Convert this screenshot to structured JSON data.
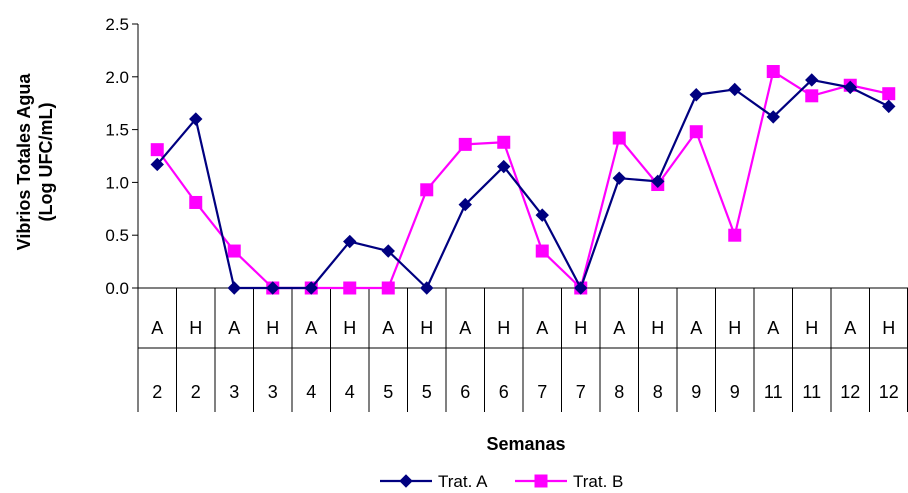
{
  "chart_data": {
    "type": "line",
    "ylabel_line1": "Vibrios Totales Agua",
    "ylabel_line2": "(Log UFC/mL)",
    "xlabel": "Semanas",
    "ylim": [
      0,
      2.5
    ],
    "yticks": [
      "0.0",
      "0.5",
      "1.0",
      "1.5",
      "2.0",
      "2.5"
    ],
    "categories_row1": [
      "A",
      "H",
      "A",
      "H",
      "A",
      "H",
      "A",
      "H",
      "A",
      "H",
      "A",
      "H",
      "A",
      "H",
      "A",
      "H",
      "A",
      "H",
      "A",
      "H"
    ],
    "categories_row2": [
      "2",
      "2",
      "3",
      "3",
      "4",
      "4",
      "5",
      "5",
      "6",
      "6",
      "7",
      "7",
      "8",
      "8",
      "9",
      "9",
      "11",
      "11",
      "12",
      "12"
    ],
    "series": [
      {
        "name": "Trat. A",
        "color": "#000080",
        "marker": "diamond",
        "values": [
          1.17,
          1.6,
          0.0,
          0.0,
          0.0,
          0.44,
          0.35,
          0.0,
          0.79,
          1.15,
          0.69,
          0.0,
          1.04,
          1.01,
          1.83,
          1.88,
          1.62,
          1.97,
          1.9,
          1.72
        ]
      },
      {
        "name": "Trat. B",
        "color": "#ff00ff",
        "marker": "square",
        "values": [
          1.31,
          0.81,
          0.35,
          0.0,
          0.0,
          0.0,
          0.0,
          0.93,
          1.36,
          1.38,
          0.35,
          0.0,
          1.42,
          0.98,
          1.48,
          0.5,
          2.05,
          1.82,
          1.92,
          1.84
        ]
      }
    ],
    "legend": "bottom-center",
    "grid": false
  }
}
